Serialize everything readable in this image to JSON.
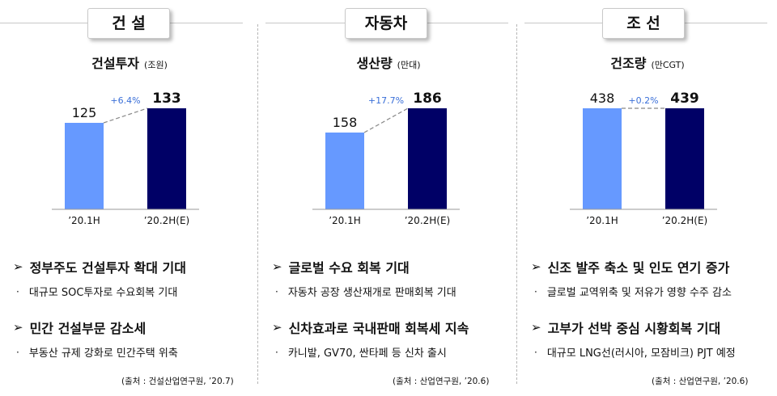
{
  "panels": [
    {
      "tab": "건 설",
      "subtitle": "건설투자",
      "unit": "(조원)",
      "bullets": [
        {
          "head": "정부주도 건설투자 확대 기대",
          "sub": "대규모 SOC투자로 수요회복 기대"
        },
        {
          "head": "민간 건설부문 감소세",
          "sub": "부동산 규제 강화로 민간주택 위축"
        }
      ],
      "source": "(출처 : 건설산업연구원, ’20.7)"
    },
    {
      "tab": "자동차",
      "subtitle": "생산량",
      "unit": "(만대)",
      "bullets": [
        {
          "head": "글로벌 수요 회복 기대",
          "sub": "자동차 공장 생산재개로 판매회복 기대"
        },
        {
          "head": "신차효과로 국내판매 회복세 지속",
          "sub": "카니발, GV70, 싼타페 등 신차 출시"
        }
      ],
      "source": "(출처 : 산업연구원, ’20.6)"
    },
    {
      "tab": "조 선",
      "subtitle": "건조량",
      "unit": "(만CGT)",
      "bullets": [
        {
          "head": "신조 발주 축소 및 인도 연기 증가",
          "sub": "글로벌 교역위축 및 저유가 영향 수주 감소"
        },
        {
          "head": "고부가 선박 중심 시황회복 기대",
          "sub": "대규모 LNG선(러시아, 모잠비크) PJT 예정"
        }
      ],
      "source": "(출처 : 산업연구원, ’20.6)"
    }
  ],
  "chart_data": [
    {
      "type": "bar",
      "title": "건설투자",
      "unit": "(조원)",
      "categories": [
        "’20.1H",
        "’20.2H(E)"
      ],
      "values": [
        125,
        133
      ],
      "change": "+6.4%",
      "colors": [
        "#6699ff",
        "#000066"
      ]
    },
    {
      "type": "bar",
      "title": "생산량",
      "unit": "(만대)",
      "categories": [
        "’20.1H",
        "’20.2H(E)"
      ],
      "values": [
        158,
        186
      ],
      "change": "+17.7%",
      "colors": [
        "#6699ff",
        "#000066"
      ]
    },
    {
      "type": "bar",
      "title": "건조량",
      "unit": "(만CGT)",
      "categories": [
        "’20.1H",
        "’20.2H(E)"
      ],
      "values": [
        438,
        439
      ],
      "change": "+0.2%",
      "colors": [
        "#6699ff",
        "#000066"
      ]
    }
  ],
  "colors": {
    "bar_first": "#6699ff",
    "bar_second": "#000066",
    "change_text": "#3a6fd8"
  }
}
